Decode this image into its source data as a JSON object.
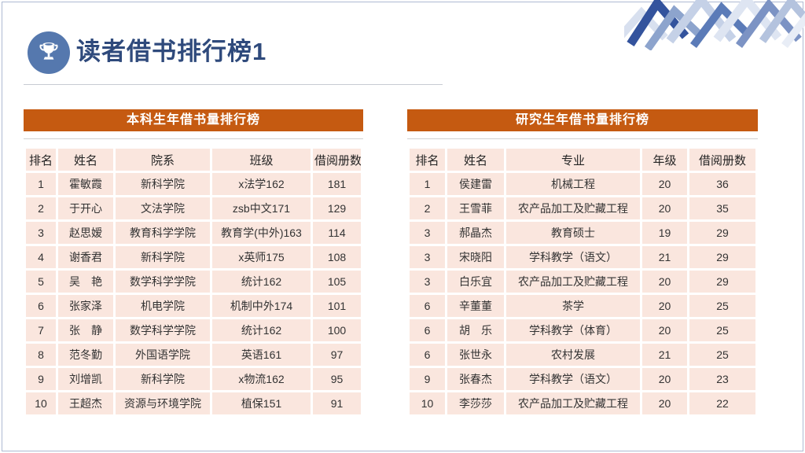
{
  "slide": {
    "title": "读者借书排行榜1",
    "colors": {
      "accent_orange": "#C55A11",
      "cell_pink": "#FAE6DE",
      "title_blue": "#2F4A7C",
      "trophy_circle_blue": "#5578AE",
      "border_blue_gray": "#AEB9D2"
    }
  },
  "tables": [
    {
      "title": "本科生年借书量排行榜",
      "columns": [
        "排名",
        "姓名",
        "院系",
        "班级",
        "借阅册数"
      ],
      "rows": [
        [
          "1",
          "霍敏霞",
          "新科学院",
          "x法学162",
          "181"
        ],
        [
          "2",
          "于开心",
          "文法学院",
          "zsb中文171",
          "129"
        ],
        [
          "3",
          "赵思嫒",
          "教育科学学院",
          "教育学(中外)163",
          "114"
        ],
        [
          "4",
          "谢香君",
          "新科学院",
          "x英师175",
          "108"
        ],
        [
          "5",
          "吴　艳",
          "数学科学学院",
          "统计162",
          "105"
        ],
        [
          "6",
          "张家泽",
          "机电学院",
          "机制中外174",
          "101"
        ],
        [
          "7",
          "张　静",
          "数学科学学院",
          "统计162",
          "100"
        ],
        [
          "8",
          "范冬勤",
          "外国语学院",
          "英语161",
          "97"
        ],
        [
          "9",
          "刘增凯",
          "新科学院",
          "x物流162",
          "95"
        ],
        [
          "10",
          "王超杰",
          "资源与环境学院",
          "植保151",
          "91"
        ]
      ]
    },
    {
      "title": "研究生年借书量排行榜",
      "columns": [
        "排名",
        "姓名",
        "专业",
        "年级",
        "借阅册数"
      ],
      "rows": [
        [
          "1",
          "侯建雷",
          "机械工程",
          "20",
          "36"
        ],
        [
          "2",
          "王雪菲",
          "农产品加工及贮藏工程",
          "20",
          "35"
        ],
        [
          "3",
          "郝晶杰",
          "教育硕士",
          "19",
          "29"
        ],
        [
          "3",
          "宋晓阳",
          "学科教学（语文）",
          "21",
          "29"
        ],
        [
          "3",
          "白乐宜",
          "农产品加工及贮藏工程",
          "20",
          "29"
        ],
        [
          "6",
          "辛董董",
          "茶学",
          "20",
          "25"
        ],
        [
          "6",
          "胡　乐",
          "学科教学（体育）",
          "20",
          "25"
        ],
        [
          "6",
          "张世永",
          "农村发展",
          "21",
          "25"
        ],
        [
          "9",
          "张春杰",
          "学科教学（语文）",
          "20",
          "23"
        ],
        [
          "10",
          "李莎莎",
          "农产品加工及贮藏工程",
          "20",
          "22"
        ]
      ]
    }
  ]
}
